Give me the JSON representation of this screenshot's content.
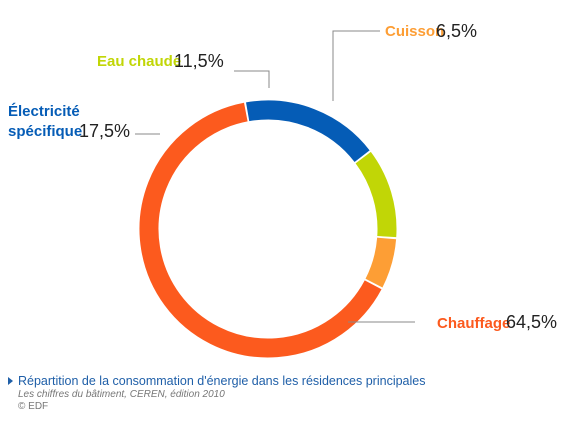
{
  "chart_data": {
    "type": "pie",
    "style": "donut",
    "title": "Répartition de la consommation d'énergie dans les résidences principales",
    "slices": [
      {
        "label": "Chauffage",
        "value": 64.5,
        "value_label": "64,5%",
        "color": "#fc5a1e"
      },
      {
        "label": "Électricité spécifique",
        "label_lines": [
          "Électricité",
          "spécifique"
        ],
        "value": 17.5,
        "value_label": "17,5%",
        "color": "#055cb6"
      },
      {
        "label": "Eau chaude",
        "value": 11.5,
        "value_label": "11,5%",
        "color": "#c1d606"
      },
      {
        "label": "Cuisson",
        "value": 6.5,
        "value_label": "6,5%",
        "color": "#fd9e35"
      }
    ]
  },
  "caption": {
    "title": "Répartition de la consommation d'énergie dans les résidences principales",
    "source": "Les chiffres du bâtiment, CEREN, édition 2010",
    "copyright": "© EDF"
  },
  "colors": {
    "caption_title": "#1f5fa8",
    "label_text": "#222222",
    "leader_line": "#888888"
  }
}
